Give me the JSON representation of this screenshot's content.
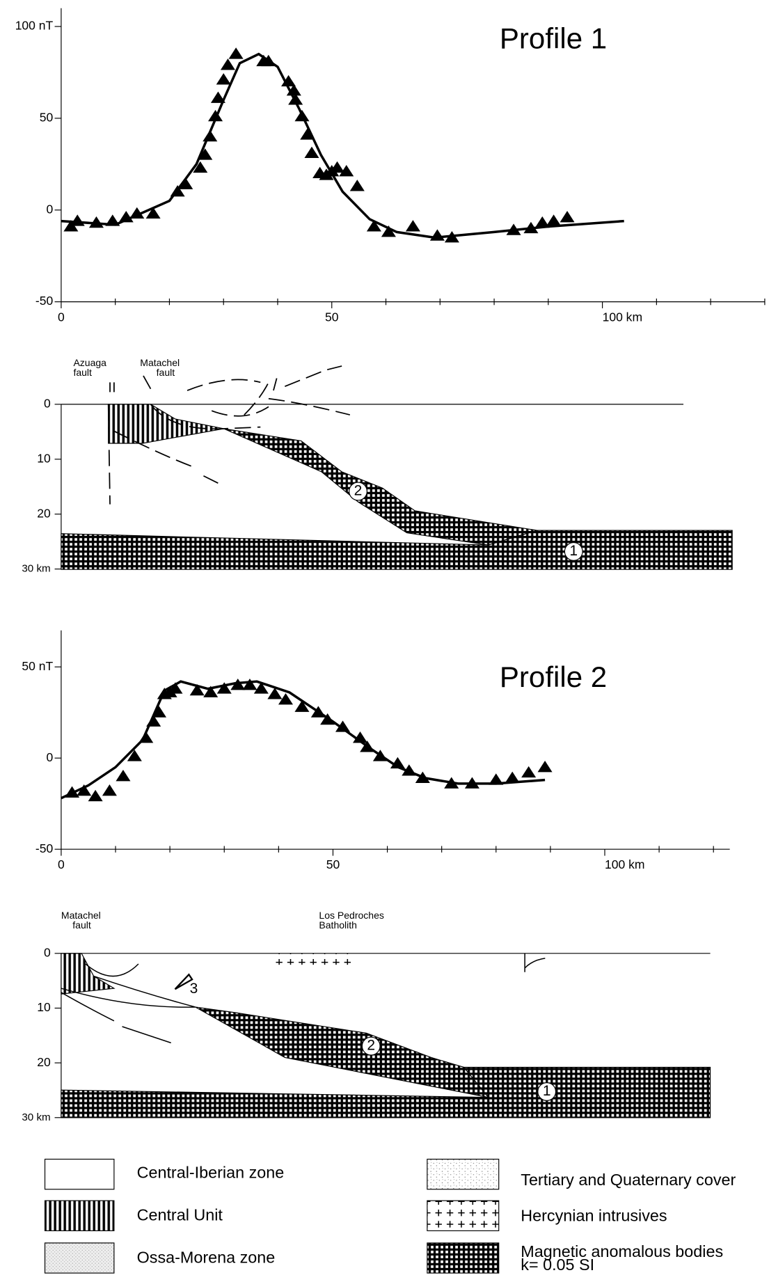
{
  "chart_data": [
    {
      "type": "scatter",
      "annotation": "Profile 1",
      "xlim": [
        0,
        130
      ],
      "xticks": [
        0,
        50,
        {
          "value": 100,
          "label": "100 km"
        }
      ],
      "xminorticks": [
        10,
        20,
        30,
        40,
        60,
        70,
        80,
        90,
        110,
        120,
        130
      ],
      "ylim": [
        -50,
        110
      ],
      "yticks": [
        -50,
        0,
        50,
        {
          "value": 100,
          "label": "100 nT"
        }
      ],
      "series": [
        {
          "mode": "markers",
          "color": "#000000",
          "x": [
            1.8,
            3,
            6.5,
            9.5,
            12,
            14,
            17,
            21.5,
            23,
            25.7,
            26.6,
            27.5,
            28.5,
            29,
            30,
            30.8,
            32.3,
            37.4,
            38.3,
            42,
            43,
            43.3,
            44.5,
            45.5,
            46.3,
            47.8,
            49,
            50,
            51,
            52.7,
            54.7,
            57.8,
            60.5,
            65,
            69.5,
            72.2,
            83.6,
            86.8,
            88.9,
            91,
            93.5
          ],
          "values": [
            -9,
            -6,
            -7,
            -6,
            -4,
            -2,
            -2,
            10,
            14,
            23,
            30,
            40,
            51,
            61,
            71,
            79,
            85,
            81,
            81,
            70,
            65,
            60,
            51,
            41,
            31,
            20,
            19,
            21,
            23,
            21,
            13,
            -9,
            -12,
            -9,
            -14,
            -15,
            -11,
            -10,
            -7,
            -6,
            -4
          ]
        },
        {
          "mode": "line",
          "color": "#000000",
          "x": [
            0,
            10,
            20,
            25,
            30,
            33,
            36.5,
            40,
            44,
            48,
            52,
            57,
            62,
            69,
            80,
            90,
            104
          ],
          "values": [
            -6,
            -8,
            5,
            25,
            60,
            80,
            85,
            78,
            55,
            30,
            10,
            -5,
            -12,
            -15,
            -12,
            -9,
            -6
          ]
        }
      ]
    },
    {
      "type": "scatter",
      "annotation": "Profile 2",
      "xlim": [
        0,
        123
      ],
      "xticks": [
        0,
        50,
        {
          "value": 100,
          "label": "100 km"
        }
      ],
      "xminorticks": [
        10,
        20,
        30,
        40,
        60,
        70,
        80,
        90,
        110,
        120
      ],
      "ylim": [
        -50,
        70
      ],
      "yticks": [
        -50,
        0,
        {
          "value": 50,
          "label": "50 nT"
        }
      ],
      "series": [
        {
          "mode": "markers",
          "color": "#000000",
          "x": [
            2,
            4.2,
            6.3,
            8.9,
            11.4,
            13.5,
            15.6,
            17,
            18,
            19,
            20,
            21,
            25,
            27.5,
            30,
            32.5,
            34.7,
            36.8,
            39.3,
            41.3,
            44.3,
            47.3,
            49,
            51.8,
            55,
            56.3,
            58.7,
            61.9,
            64,
            66.5,
            71.8,
            75.6,
            80,
            83,
            86,
            89
          ],
          "values": [
            -19,
            -18,
            -21,
            -18,
            -10,
            1,
            11,
            20,
            25,
            35,
            36,
            38,
            37,
            36,
            38,
            40,
            40,
            38,
            35,
            32,
            28,
            25,
            21,
            17,
            11,
            6,
            1,
            -3,
            -7,
            -11,
            -14,
            -14,
            -12,
            -11,
            -8,
            -5
          ]
        },
        {
          "mode": "line",
          "color": "#000000",
          "x": [
            0,
            5,
            10,
            15,
            19,
            22,
            27,
            32,
            36,
            42,
            50,
            57,
            62,
            67,
            73,
            80,
            89
          ],
          "values": [
            -22,
            -15,
            -5,
            10,
            37,
            42,
            38,
            41,
            42,
            36,
            20,
            5,
            -5,
            -11,
            -14,
            -14,
            -12
          ]
        }
      ]
    }
  ],
  "sections": [
    {
      "depth_ticks": [
        0,
        10,
        20,
        {
          "value": 30,
          "label": "30 km"
        }
      ],
      "faults": [
        [
          "Azuaga",
          "fault"
        ],
        [
          "Matachel",
          "fault"
        ]
      ],
      "bodies": [
        "1",
        "2"
      ]
    },
    {
      "depth_ticks": [
        0,
        10,
        20,
        {
          "value": 30,
          "label": "30 km"
        }
      ],
      "faults": [
        [
          "Matachel",
          "fault"
        ],
        [
          "Los Pedroches",
          "Batholith"
        ]
      ],
      "bodies": [
        "1",
        "2",
        "3"
      ]
    }
  ],
  "legend": [
    [
      "Central-Iberian zone"
    ],
    [
      "Central Unit"
    ],
    [
      "Ossa-Morena zone"
    ],
    [
      "Tertiary and Quaternary cover"
    ],
    [
      "Hercynian intrusives"
    ],
    [
      "Magnetic anomalous bodies",
      "k= 0.05 SI"
    ]
  ]
}
